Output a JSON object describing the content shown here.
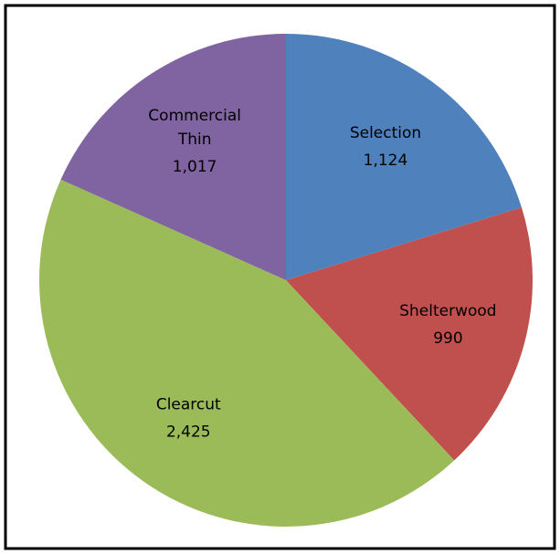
{
  "chart_data": {
    "type": "pie",
    "categories": [
      "Selection",
      "Shelterwood",
      "Clearcut",
      "Commercial Thin"
    ],
    "values": [
      1124,
      990,
      2425,
      1017
    ],
    "value_labels": [
      "1,124",
      "990",
      "2,425",
      "1,017"
    ],
    "colors": [
      "#4f81bd",
      "#c0504d",
      "#9bbb59",
      "#8064a2"
    ]
  }
}
